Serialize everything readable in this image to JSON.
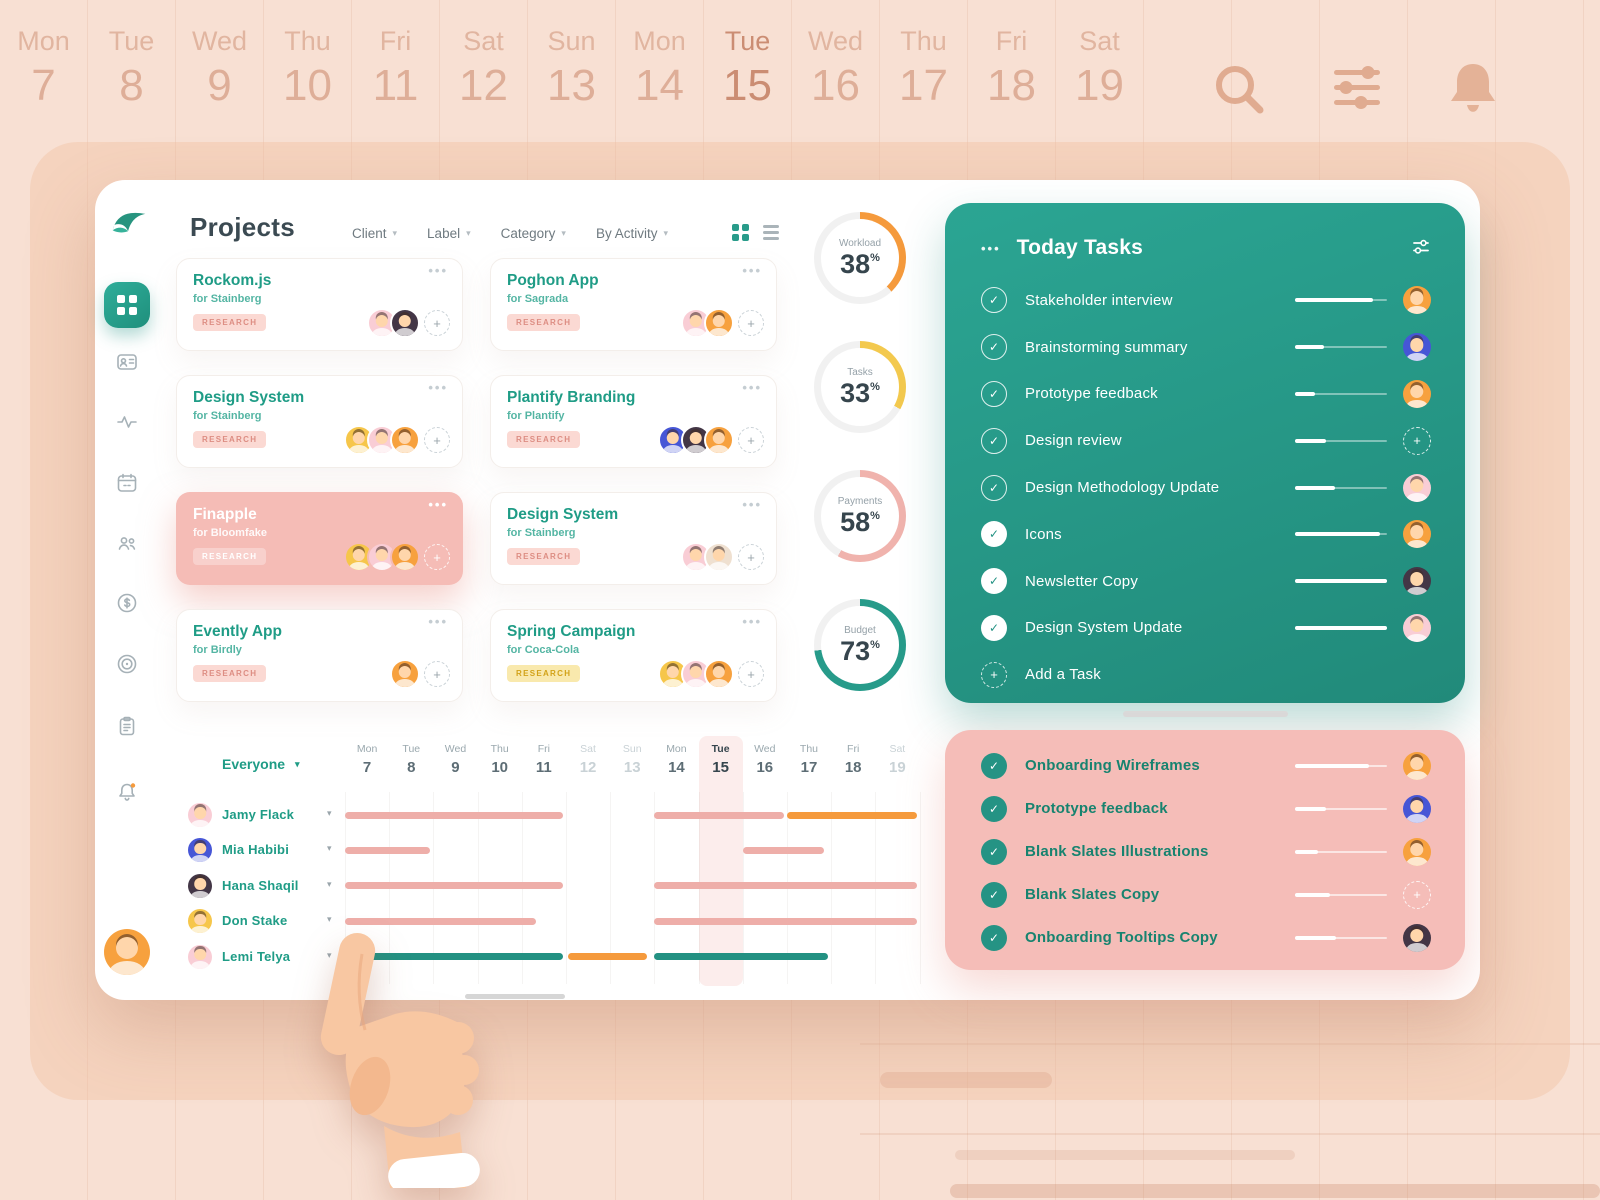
{
  "icons": {
    "chevron": "▾",
    "check": "✓",
    "plus": "+",
    "dots": "•••"
  },
  "calendar": {
    "today_index": 8,
    "days": [
      {
        "d": "Mon",
        "n": "7"
      },
      {
        "d": "Tue",
        "n": "8"
      },
      {
        "d": "Wed",
        "n": "9"
      },
      {
        "d": "Thu",
        "n": "10"
      },
      {
        "d": "Fri",
        "n": "11"
      },
      {
        "d": "Sat",
        "n": "12"
      },
      {
        "d": "Sun",
        "n": "13"
      },
      {
        "d": "Mon",
        "n": "14"
      },
      {
        "d": "Tue",
        "n": "15"
      },
      {
        "d": "Wed",
        "n": "16"
      },
      {
        "d": "Thu",
        "n": "17"
      },
      {
        "d": "Fri",
        "n": "18"
      },
      {
        "d": "Sat",
        "n": "19"
      }
    ]
  },
  "header": {
    "title": "Projects",
    "filters": [
      "Client",
      "Label",
      "Category",
      "By Activity"
    ]
  },
  "colors": {
    "green": "#289b8a",
    "pink": "#f5bdb8",
    "orange": "#f59a3c",
    "yellow": "#f3c94e"
  },
  "projects": [
    {
      "name": "Rockom.js",
      "client": "for Stainberg",
      "tag": "RESEARCH",
      "tag_color": "pink",
      "highlight": false,
      "avatars": [
        "pink",
        "dark"
      ]
    },
    {
      "name": "Poghon App",
      "client": "for Sagrada",
      "tag": "RESEARCH",
      "tag_color": "pink",
      "highlight": false,
      "avatars": [
        "pink",
        "orange"
      ]
    },
    {
      "name": "Design System",
      "client": "for Stainberg",
      "tag": "RESEARCH",
      "tag_color": "pink",
      "highlight": false,
      "avatars": [
        "yellow",
        "pink",
        "orange"
      ]
    },
    {
      "name": "Plantify Branding",
      "client": "for Plantify",
      "tag": "RESEARCH",
      "tag_color": "pink",
      "highlight": false,
      "avatars": [
        "blue",
        "dark",
        "orange"
      ]
    },
    {
      "name": "Finapple",
      "client": "for Bloomfake",
      "tag": "RESEARCH",
      "tag_color": "pink",
      "highlight": true,
      "avatars": [
        "yellow",
        "pink",
        "orange"
      ]
    },
    {
      "name": "Design System",
      "client": "for Stainberg",
      "tag": "RESEARCH",
      "tag_color": "pink",
      "highlight": false,
      "avatars": [
        "pink",
        "light"
      ]
    },
    {
      "name": "Evently App",
      "client": "for Birdly",
      "tag": "RESEARCH",
      "tag_color": "pink",
      "highlight": false,
      "avatars": [
        "orange"
      ]
    },
    {
      "name": "Spring Campaign",
      "client": "for Coca-Cola",
      "tag": "RESEARCH",
      "tag_color": "yellow",
      "highlight": false,
      "avatars": [
        "yellow",
        "pink",
        "orange"
      ]
    }
  ],
  "stats": [
    {
      "label": "Workload",
      "value": 38,
      "unit": "%",
      "color": "#f59a3c"
    },
    {
      "label": "Tasks",
      "value": 33,
      "unit": "%",
      "color": "#f3c94e"
    },
    {
      "label": "Payments",
      "value": 58,
      "unit": "%",
      "color": "#f0b3ad"
    },
    {
      "label": "Budget",
      "value": 73,
      "unit": "%",
      "color": "#279b8a"
    }
  ],
  "today_tasks": {
    "title": "Today Tasks",
    "add_label": "Add a Task",
    "items": [
      {
        "label": "Stakeholder interview",
        "check": "outline",
        "progress": 85,
        "avatar": "orange"
      },
      {
        "label": "Brainstorming summary",
        "check": "outline",
        "progress": 32,
        "avatar": "blue"
      },
      {
        "label": "Prototype feedback",
        "check": "outline",
        "progress": 22,
        "avatar": "orange"
      },
      {
        "label": "Design review",
        "check": "outline",
        "progress": 34,
        "avatar": "add"
      },
      {
        "label": "Design Methodology Update",
        "check": "outline",
        "progress": 44,
        "avatar": "pink"
      },
      {
        "label": "Icons",
        "check": "solid",
        "progress": 92,
        "avatar": "orange"
      },
      {
        "label": "Newsletter Copy",
        "check": "solid",
        "progress": 100,
        "avatar": "dark"
      },
      {
        "label": "Design System Update",
        "check": "solid",
        "progress": 100,
        "avatar": "pink"
      }
    ]
  },
  "done_tasks": {
    "items": [
      {
        "label": "Onboarding Wireframes",
        "progress": 80,
        "avatar": "orange"
      },
      {
        "label": "Prototype feedback",
        "progress": 34,
        "avatar": "blue"
      },
      {
        "label": "Blank Slates Illustrations",
        "progress": 25,
        "avatar": "orange"
      },
      {
        "label": "Blank Slates Copy",
        "progress": 38,
        "avatar": "add"
      },
      {
        "label": "Onboarding Tooltips Copy",
        "progress": 45,
        "avatar": "dark"
      }
    ]
  },
  "gantt": {
    "everyone_label": "Everyone",
    "rows": [
      {
        "name": "Jamy  Flack",
        "avatar": "pink",
        "bars": [
          {
            "start": 0,
            "end": 5,
            "color": "pink"
          },
          {
            "start": 7,
            "end": 10,
            "color": "pink"
          },
          {
            "start": 10,
            "end": 13,
            "color": "orange"
          }
        ]
      },
      {
        "name": "Mia  Habibi",
        "avatar": "blue",
        "bars": [
          {
            "start": 0,
            "end": 2,
            "color": "pink"
          },
          {
            "start": 9,
            "end": 10.9,
            "color": "pink"
          }
        ]
      },
      {
        "name": "Hana  Shaqil",
        "avatar": "dark",
        "bars": [
          {
            "start": 0,
            "end": 5,
            "color": "pink"
          },
          {
            "start": 7,
            "end": 13,
            "color": "pink"
          }
        ]
      },
      {
        "name": "Don Stake",
        "avatar": "yellow",
        "bars": [
          {
            "start": 0,
            "end": 4.4,
            "color": "pink"
          },
          {
            "start": 7,
            "end": 13,
            "color": "pink"
          }
        ]
      },
      {
        "name": "Lemi Telya",
        "avatar": "pink",
        "bars": [
          {
            "start": 0.1,
            "end": 5,
            "color": "green"
          },
          {
            "start": 5.05,
            "end": 6.9,
            "color": "orange"
          },
          {
            "start": 7,
            "end": 11,
            "color": "green"
          }
        ]
      }
    ]
  }
}
